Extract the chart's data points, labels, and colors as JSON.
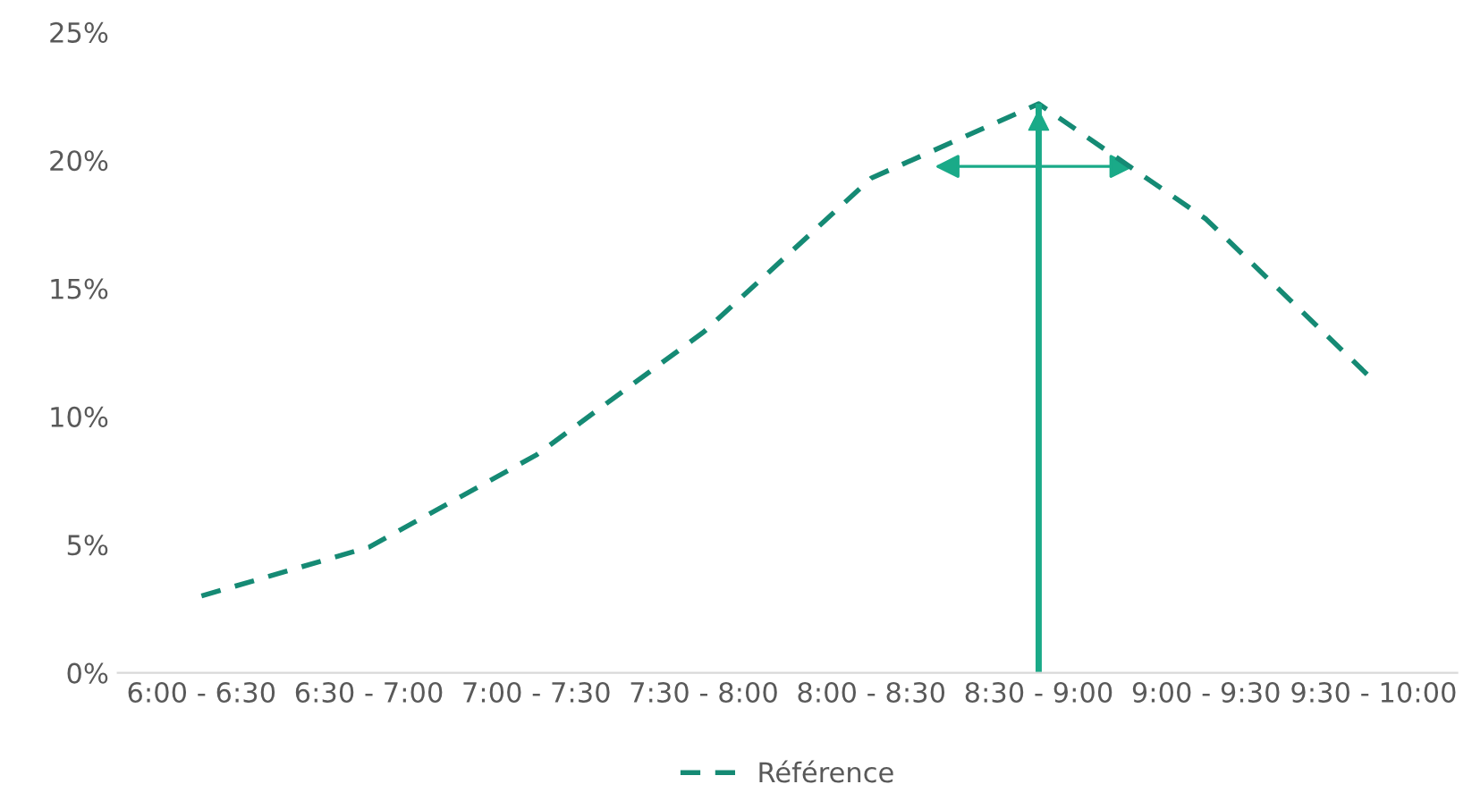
{
  "chart_data": {
    "type": "line",
    "categories": [
      "6:00 - 6:30",
      "6:30 - 7:00",
      "7:00 - 7:30",
      "7:30 - 8:00",
      "8:00 - 8:30",
      "8:30 - 9:00",
      "9:00 - 9:30",
      "9:30 - 10:00"
    ],
    "series": [
      {
        "name": "Référence",
        "color": "#158a74",
        "values": [
          3.0,
          4.9,
          8.5,
          13.3,
          19.3,
          22.2,
          17.7,
          11.4
        ]
      }
    ],
    "ylim": [
      0,
      25
    ],
    "yticks": [
      {
        "value": 0,
        "label": "0%"
      },
      {
        "value": 5,
        "label": "5%"
      },
      {
        "value": 10,
        "label": "10%"
      },
      {
        "value": 15,
        "label": "15%"
      },
      {
        "value": 20,
        "label": "20%"
      },
      {
        "value": 25,
        "label": "25%"
      }
    ],
    "ref_lines": [
      {
        "axis": "x",
        "value": "8:30 - 9:00",
        "color": "#1aaa88"
      }
    ],
    "line_style": "dashed",
    "marker": "none",
    "grid": false,
    "legend": "bottom"
  }
}
